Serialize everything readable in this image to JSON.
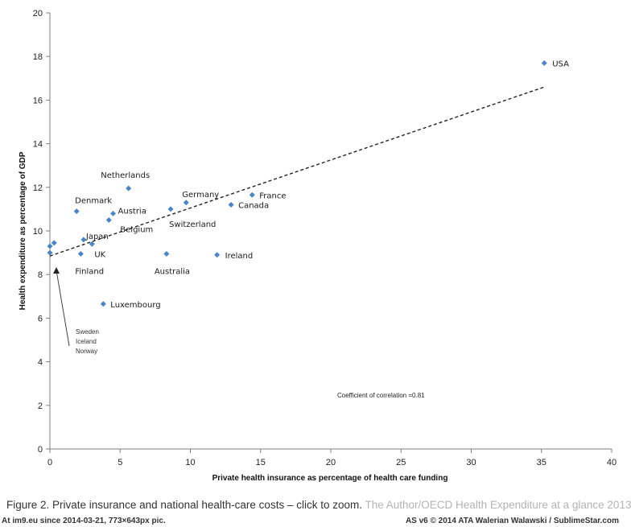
{
  "chart_data": {
    "type": "scatter",
    "xlabel": "Private health insurance as percentage of health care funding",
    "ylabel": "Health expenditure as percentage of GDP",
    "xlim": [
      0,
      40
    ],
    "ylim": [
      0,
      20
    ],
    "x_ticks": [
      0,
      5,
      10,
      15,
      20,
      25,
      30,
      35,
      40
    ],
    "y_ticks": [
      0,
      2,
      4,
      6,
      8,
      10,
      12,
      14,
      16,
      18,
      20
    ],
    "grid": false,
    "marker_color": "#4a86c5",
    "points": [
      {
        "label": "USA",
        "x": 35.2,
        "y": 17.7
      },
      {
        "label": "Netherlands",
        "x": 5.6,
        "y": 11.95
      },
      {
        "label": "France",
        "x": 14.4,
        "y": 11.65
      },
      {
        "label": "Germany",
        "x": 9.7,
        "y": 11.3
      },
      {
        "label": "Canada",
        "x": 12.9,
        "y": 11.2
      },
      {
        "label": "Switzerland",
        "x": 8.6,
        "y": 11.0
      },
      {
        "label": "Denmark",
        "x": 1.9,
        "y": 10.9
      },
      {
        "label": "Austria",
        "x": 4.5,
        "y": 10.8
      },
      {
        "label": "Belgium",
        "x": 4.2,
        "y": 10.5
      },
      {
        "label": "Japan",
        "x": 2.4,
        "y": 9.6
      },
      {
        "label": "UK",
        "x": 3.0,
        "y": 9.4
      },
      {
        "label": "Ireland",
        "x": 11.9,
        "y": 8.9
      },
      {
        "label": "Australia",
        "x": 8.3,
        "y": 8.95
      },
      {
        "label": "Finland",
        "x": 2.2,
        "y": 8.95
      },
      {
        "label": "Luxembourg",
        "x": 3.8,
        "y": 6.65
      },
      {
        "label": "",
        "x": 0.0,
        "y": 9.3
      },
      {
        "label": "",
        "x": 0.0,
        "y": 9.0
      },
      {
        "label": "",
        "x": 0.3,
        "y": 9.45
      }
    ],
    "trendline": {
      "x": [
        0,
        35.2
      ],
      "y": [
        8.85,
        16.6
      ],
      "style": "dashed"
    },
    "annotations": {
      "corr": "Coefficient of correlation =0.81",
      "note_lines": [
        "Sweden",
        "Iceland",
        "Norway"
      ]
    }
  },
  "caption": {
    "text": "Figure 2. Private insurance and national health-care costs – click to zoom.",
    "credit": "The Author/OECD Health Expenditure at a glance 2013"
  },
  "footer": {
    "left": "At im9.eu  since 2014-03-21, 773×643px pic.",
    "right": "AS v6 © 2014 ATA Walerian Walawski / SublimeStar.com"
  }
}
